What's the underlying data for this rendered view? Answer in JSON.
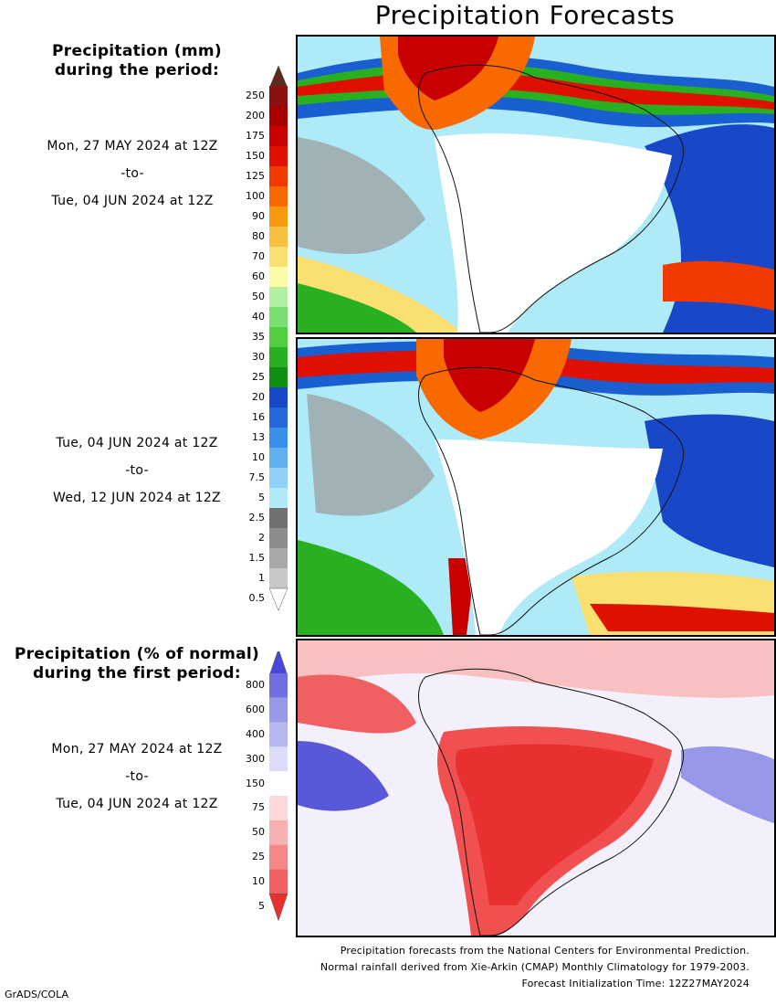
{
  "title": "Precipitation Forecasts",
  "precip_heading": [
    "Precipitation (mm)",
    "during the period:"
  ],
  "period1": {
    "start": "Mon, 27 MAY 2024 at 12Z",
    "sep": "-to-",
    "end": "Tue, 04 JUN 2024 at 12Z"
  },
  "period2": {
    "start": "Tue, 04 JUN 2024 at 12Z",
    "sep": "-to-",
    "end": "Wed, 12 JUN 2024 at 12Z"
  },
  "normal_heading": [
    "Precipitation (% of normal)",
    "during the first period:"
  ],
  "period3": {
    "start": "Mon, 27 MAY 2024 at 12Z",
    "sep": "-to-",
    "end": "Tue, 04 JUN 2024 at 12Z"
  },
  "precip_scale": {
    "labels": [
      "250",
      "200",
      "175",
      "150",
      "125",
      "100",
      "90",
      "80",
      "70",
      "60",
      "50",
      "40",
      "35",
      "30",
      "25",
      "20",
      "16",
      "13",
      "10",
      "7.5",
      "5",
      "2.5",
      "2",
      "1.5",
      "1",
      "0.5"
    ],
    "colors": [
      "#5c2a1e",
      "#8b1010",
      "#a80000",
      "#c80000",
      "#e01000",
      "#f03a00",
      "#f86a00",
      "#f89a10",
      "#f8c040",
      "#fae070",
      "#fcfca8",
      "#b0f0a0",
      "#78e070",
      "#50d040",
      "#28b020",
      "#109010",
      "#1848c8",
      "#2468d8",
      "#3890e8",
      "#60b0f0",
      "#90d0f8",
      "#b0eaf8",
      "#707070",
      "#8c8c8c",
      "#a8a8a8",
      "#c8c8c8",
      "#ffffff"
    ]
  },
  "normal_scale": {
    "labels": [
      "800",
      "600",
      "400",
      "300",
      "150",
      "75",
      "50",
      "25",
      "10",
      "5"
    ],
    "colors": [
      "#4848d8",
      "#7070e0",
      "#9898e8",
      "#b8b8f0",
      "#dcdcf8",
      "#ffffff",
      "#fcd8d8",
      "#f8b0b0",
      "#f48888",
      "#f06060",
      "#e83030"
    ]
  },
  "footer": [
    "Precipitation forecasts from the National Centers for Environmental Prediction.",
    "Normal rainfall derived from Xie-Arkin (CMAP) Monthly Climatology for 1979-2003.",
    "Forecast Initialization Time: 12Z27MAY2024"
  ],
  "credit": "GrADS/COLA"
}
